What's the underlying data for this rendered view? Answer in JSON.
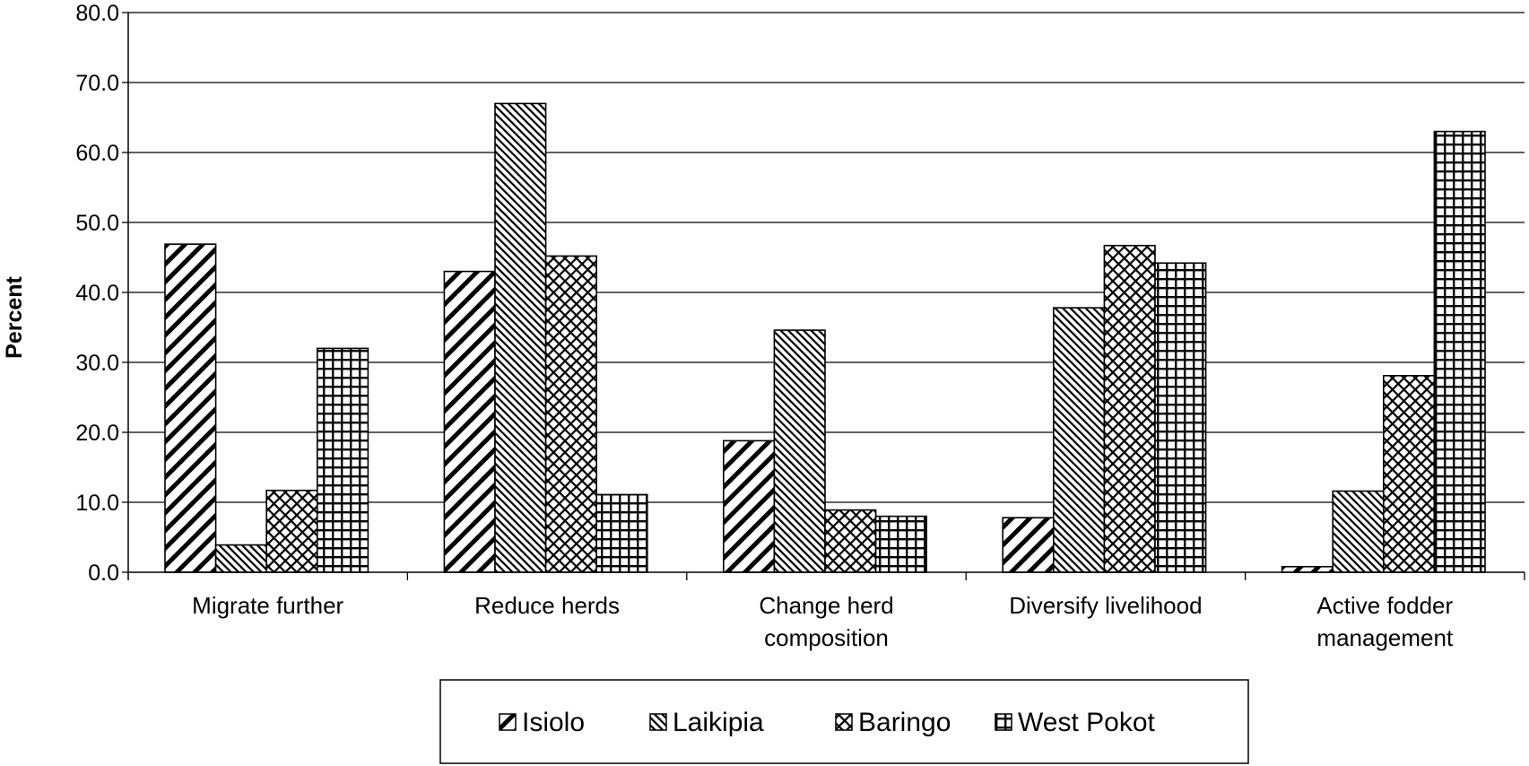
{
  "chart_data": {
    "type": "bar",
    "title": "",
    "xlabel": "",
    "ylabel": "Percent",
    "ylim": [
      0,
      80
    ],
    "ytick_step": 10,
    "ytick_labels": [
      "0.0",
      "10.0",
      "20.0",
      "30.0",
      "40.0",
      "50.0",
      "60.0",
      "70.0",
      "80.0"
    ],
    "grid": true,
    "legend_position": "bottom",
    "categories": [
      [
        "Migrate further"
      ],
      [
        "Reduce herds"
      ],
      [
        "Change herd",
        "composition"
      ],
      [
        "Diversify livelihood"
      ],
      [
        "Active fodder",
        "management"
      ]
    ],
    "series": [
      {
        "name": "Isiolo",
        "pattern": "wide-diagonal",
        "values": [
          46.9,
          43.0,
          18.8,
          7.8,
          0.8
        ]
      },
      {
        "name": "Laikipia",
        "pattern": "dense-diagonal",
        "values": [
          3.9,
          67.0,
          34.6,
          37.8,
          11.6
        ]
      },
      {
        "name": "Baringo",
        "pattern": "crosshatch",
        "values": [
          11.7,
          45.2,
          8.9,
          46.7,
          28.1
        ]
      },
      {
        "name": "West Pokot",
        "pattern": "grid",
        "values": [
          32.0,
          11.1,
          8.0,
          44.2,
          63.0
        ]
      }
    ]
  }
}
